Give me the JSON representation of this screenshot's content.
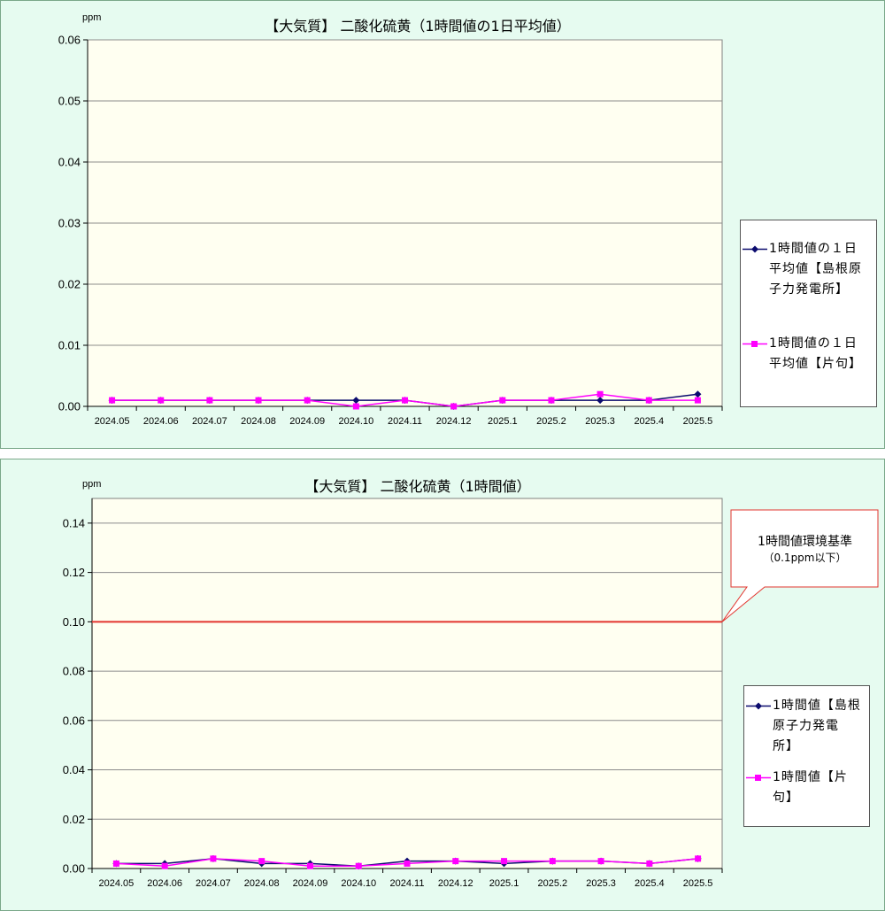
{
  "colors": {
    "series_shimane": "#0b0b6e",
    "series_katamuku": "#ff00ff",
    "standard_line": "#e3352f"
  },
  "chart_data": [
    {
      "type": "line",
      "title": "【大気質】 二酸化硫黄（1時間値の1日平均値）",
      "ylabel": "ppm",
      "categories": [
        "2024.05",
        "2024.06",
        "2024.07",
        "2024.08",
        "2024.09",
        "2024.10",
        "2024.11",
        "2024.12",
        "2025.1",
        "2025.2",
        "2025.3",
        "2025.4",
        "2025.5"
      ],
      "ylim": [
        0,
        0.06
      ],
      "yticks": [
        "0.00",
        "0.01",
        "0.02",
        "0.03",
        "0.04",
        "0.05",
        "0.06"
      ],
      "grid": true,
      "legend_position": "right",
      "series": [
        {
          "name": "1時間値の１日平均値【島根原子力発電所】",
          "legend_lines": [
            "1時間値の１日",
            "平均値【島根原",
            "子力発電所】"
          ],
          "marker": "diamond",
          "color": "#0b0b6e",
          "values": [
            0.001,
            0.001,
            0.001,
            0.001,
            0.001,
            0.001,
            0.001,
            0.0,
            0.001,
            0.001,
            0.001,
            0.001,
            0.002
          ]
        },
        {
          "name": "1時間値の１日平均値【片句】",
          "legend_lines": [
            "1時間値の１日",
            "平均値【片句】"
          ],
          "marker": "square",
          "color": "#ff00ff",
          "values": [
            0.001,
            0.001,
            0.001,
            0.001,
            0.001,
            0.0,
            0.001,
            0.0,
            0.001,
            0.001,
            0.002,
            0.001,
            0.001
          ]
        }
      ]
    },
    {
      "type": "line",
      "title": "【大気質】 二酸化硫黄（1時間値）",
      "ylabel": "ppm",
      "categories": [
        "2024.05",
        "2024.06",
        "2024.07",
        "2024.08",
        "2024.09",
        "2024.10",
        "2024.11",
        "2024.12",
        "2025.1",
        "2025.2",
        "2025.3",
        "2025.4",
        "2025.5"
      ],
      "ylim": [
        0,
        0.15
      ],
      "yticks": [
        "0.00",
        "0.02",
        "0.04",
        "0.06",
        "0.08",
        "0.10",
        "0.12",
        "0.14"
      ],
      "grid": true,
      "legend_position": "right",
      "reference_line": {
        "value": 0.1,
        "label_lines": [
          "1時間値環境基準",
          "（0.1ppm以下）"
        ]
      },
      "series": [
        {
          "name": "1時間値【島根原子力発電所】",
          "legend_lines": [
            "1時間値【島根",
            "原子力発電",
            "所】"
          ],
          "marker": "diamond",
          "color": "#0b0b6e",
          "values": [
            0.002,
            0.002,
            0.004,
            0.002,
            0.002,
            0.001,
            0.003,
            0.003,
            0.002,
            0.003,
            0.003,
            0.002,
            0.004
          ]
        },
        {
          "name": "1時間値【片句】",
          "legend_lines": [
            "1時間値【片",
            "句】"
          ],
          "marker": "square",
          "color": "#ff00ff",
          "values": [
            0.002,
            0.001,
            0.004,
            0.003,
            0.001,
            0.001,
            0.002,
            0.003,
            0.003,
            0.003,
            0.003,
            0.002,
            0.004
          ]
        }
      ]
    }
  ]
}
